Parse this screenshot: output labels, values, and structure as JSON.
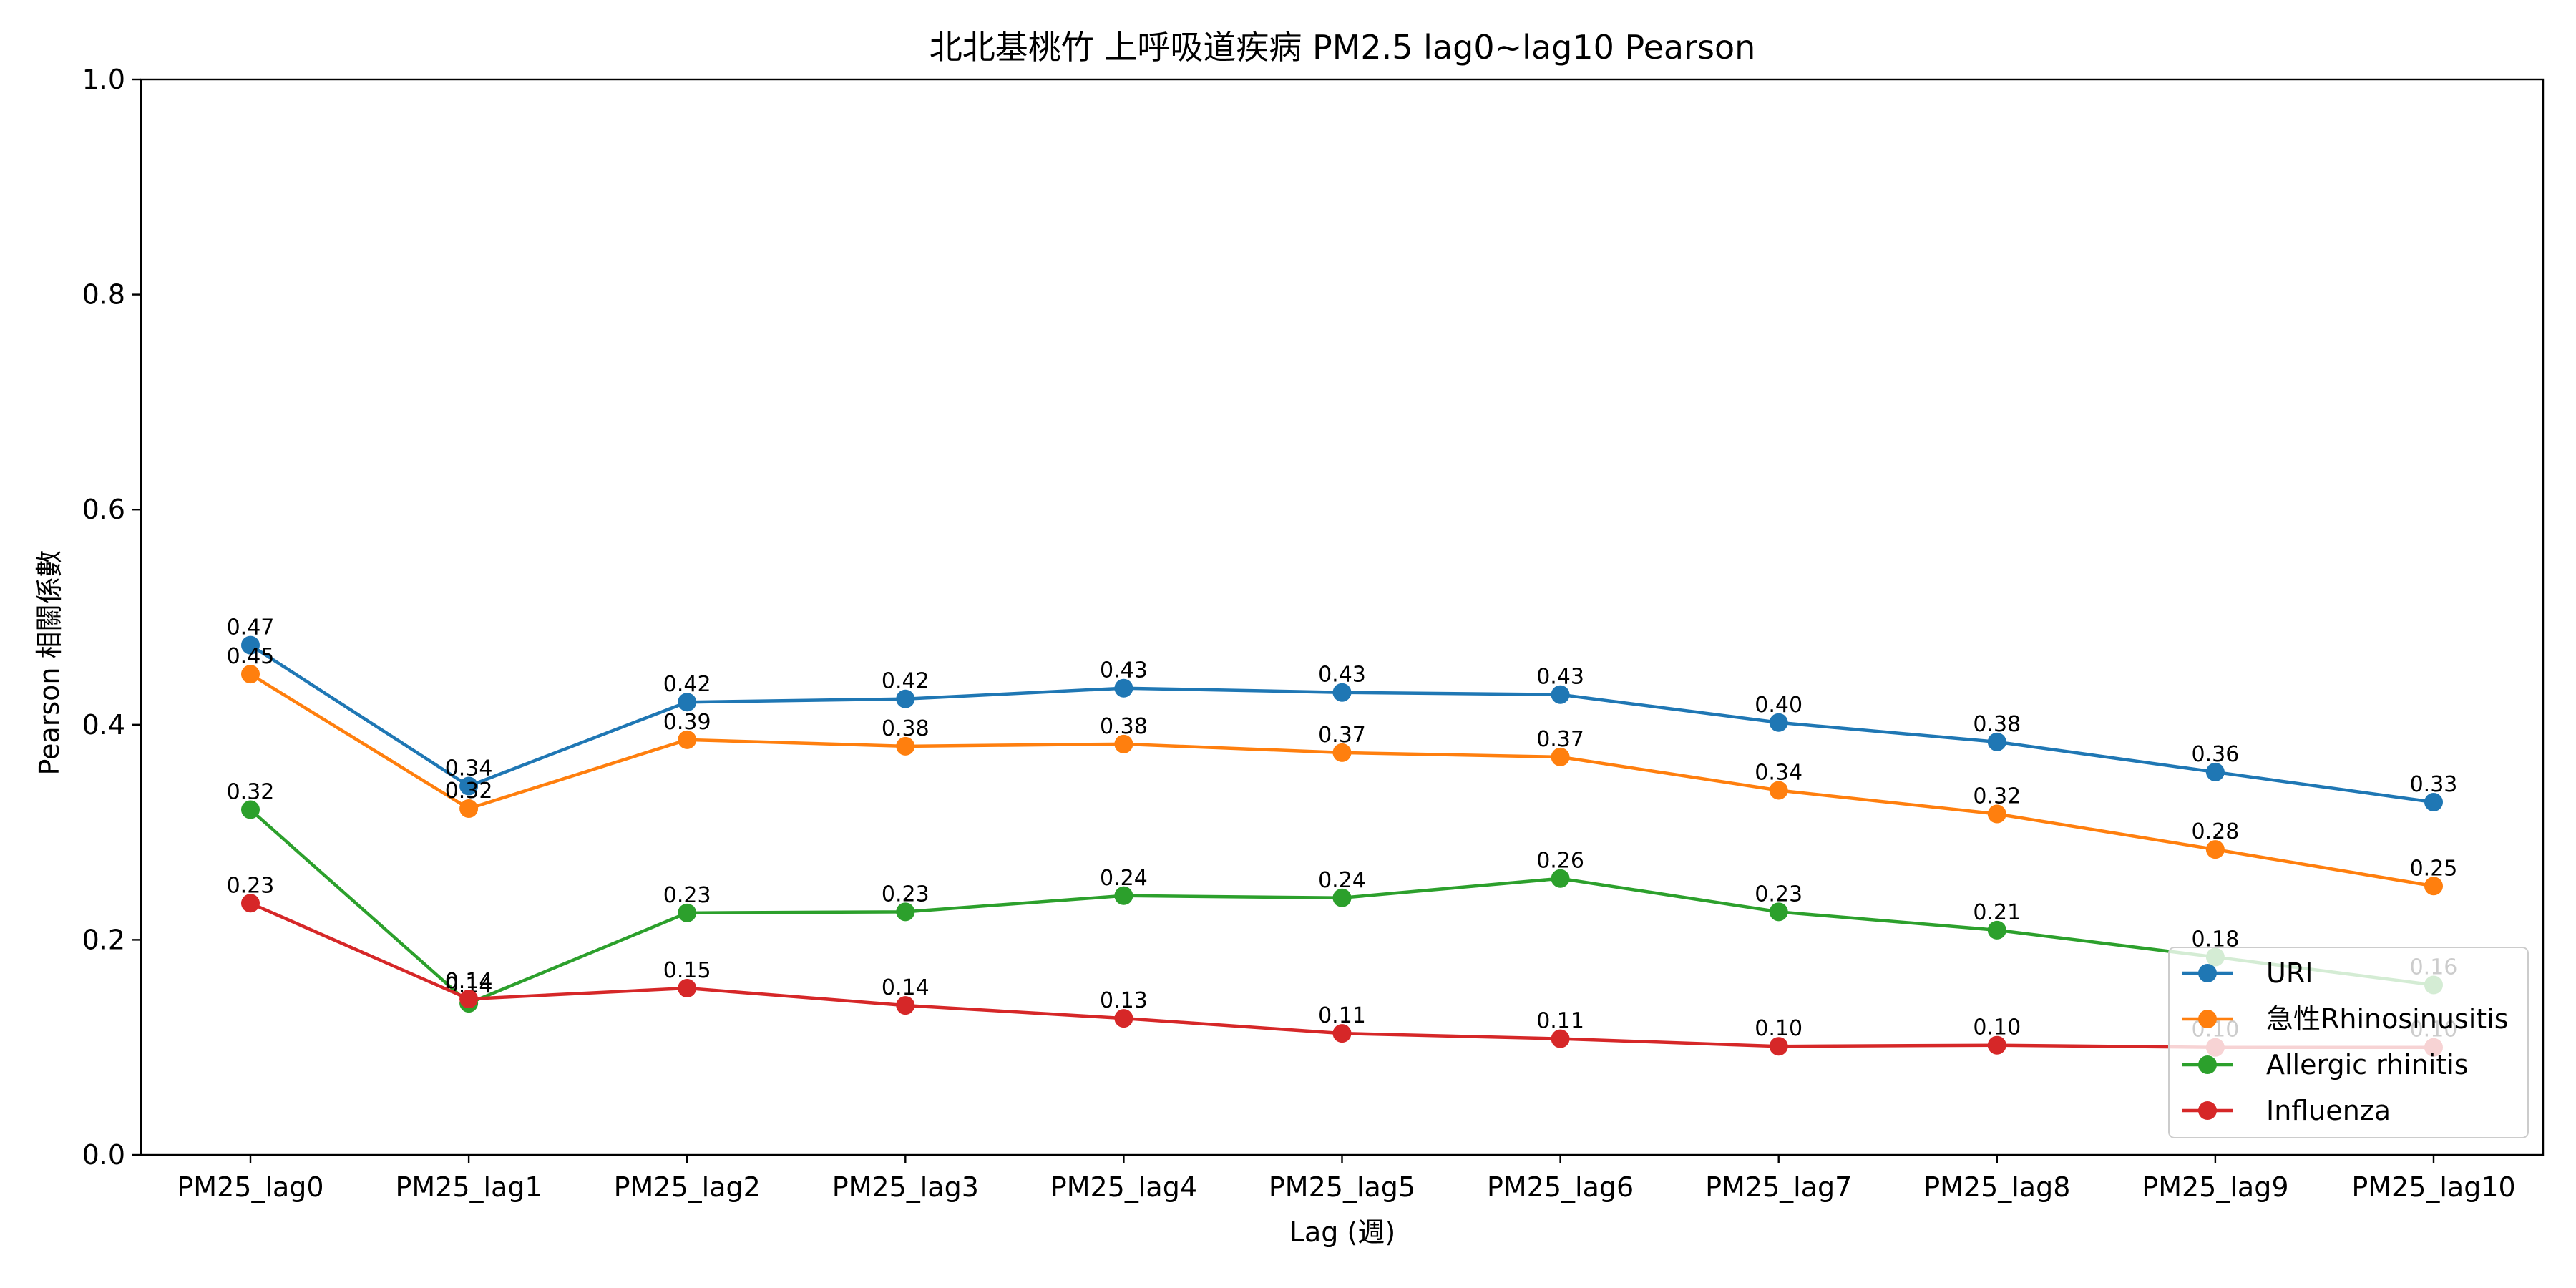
{
  "chart_data": {
    "type": "line",
    "title": "北北基桃竹 上呼吸道疾病 PM2.5 lag0~lag10 Pearson",
    "xlabel": "Lag (週)",
    "ylabel": "Pearson 相關係數",
    "ylim": [
      0,
      1.0
    ],
    "yticks": [
      "0.0",
      "0.2",
      "0.4",
      "0.6",
      "0.8",
      "1.0"
    ],
    "grid": false,
    "legend_position": "bottom-right",
    "categories": [
      "PM25_lag0",
      "PM25_lag1",
      "PM25_lag2",
      "PM25_lag3",
      "PM25_lag4",
      "PM25_lag5",
      "PM25_lag6",
      "PM25_lag7",
      "PM25_lag8",
      "PM25_lag9",
      "PM25_lag10"
    ],
    "series": [
      {
        "name": "URI",
        "color": "#1f77b4",
        "values": [
          0.474,
          0.343,
          0.421,
          0.424,
          0.434,
          0.43,
          0.428,
          0.402,
          0.384,
          0.356,
          0.328
        ],
        "labels": [
          "0.47",
          "0.34",
          "0.42",
          "0.42",
          "0.43",
          "0.43",
          "0.43",
          "0.40",
          "0.38",
          "0.36",
          "0.33"
        ]
      },
      {
        "name": "急性Rhinosinusitis",
        "color": "#ff7f0e",
        "values": [
          0.447,
          0.322,
          0.386,
          0.38,
          0.382,
          0.374,
          0.37,
          0.339,
          0.317,
          0.284,
          0.25
        ],
        "labels": [
          "0.45",
          "0.32",
          "0.39",
          "0.38",
          "0.38",
          "0.37",
          "0.37",
          "0.34",
          "0.32",
          "0.28",
          "0.25"
        ]
      },
      {
        "name": "Allergic rhinitis",
        "color": "#2ca02c",
        "values": [
          0.321,
          0.141,
          0.225,
          0.226,
          0.241,
          0.239,
          0.257,
          0.226,
          0.209,
          0.184,
          0.158
        ],
        "labels": [
          "0.32",
          "0.14",
          "0.23",
          "0.23",
          "0.24",
          "0.24",
          "0.26",
          "0.23",
          "0.21",
          "0.18",
          "0.16"
        ]
      },
      {
        "name": "Influenza",
        "color": "#d62728",
        "values": [
          0.234,
          0.145,
          0.155,
          0.139,
          0.127,
          0.113,
          0.108,
          0.101,
          0.102,
          0.1,
          0.1
        ],
        "labels": [
          "0.23",
          "0.14",
          "0.15",
          "0.14",
          "0.13",
          "0.11",
          "0.11",
          "0.10",
          "0.10",
          "0.10",
          "0.10"
        ]
      }
    ]
  }
}
